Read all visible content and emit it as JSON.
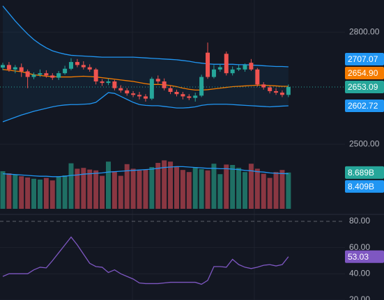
{
  "chart_data": [
    {
      "type": "candlestick",
      "open": [
        2705,
        2712,
        2700,
        2706,
        2695,
        2680,
        2686,
        2690,
        2684,
        2678,
        2690,
        2702,
        2720,
        2712,
        2706,
        2700,
        2668,
        2664,
        2668,
        2650,
        2644,
        2636,
        2632,
        2628,
        2622,
        2675,
        2668,
        2650,
        2640,
        2634,
        2628,
        2624,
        2630,
        2745,
        2680,
        2700,
        2742,
        2690,
        2700,
        2700,
        2718,
        2700,
        2660,
        2652,
        2642,
        2638,
        2632
      ],
      "high": [
        2718,
        2720,
        2712,
        2716,
        2700,
        2692,
        2700,
        2698,
        2690,
        2696,
        2710,
        2730,
        2728,
        2722,
        2714,
        2704,
        2674,
        2676,
        2672,
        2658,
        2650,
        2642,
        2640,
        2634,
        2680,
        2684,
        2676,
        2656,
        2646,
        2640,
        2634,
        2638,
        2686,
        2772,
        2712,
        2714,
        2748,
        2708,
        2712,
        2716,
        2728,
        2704,
        2666,
        2656,
        2650,
        2644,
        2660
      ],
      "low": [
        2698,
        2694,
        2690,
        2680,
        2650,
        2674,
        2680,
        2678,
        2672,
        2672,
        2686,
        2698,
        2706,
        2700,
        2694,
        2660,
        2656,
        2658,
        2644,
        2638,
        2630,
        2626,
        2620,
        2614,
        2618,
        2662,
        2644,
        2634,
        2628,
        2620,
        2618,
        2614,
        2626,
        2675,
        2676,
        2694,
        2684,
        2684,
        2696,
        2694,
        2696,
        2654,
        2646,
        2636,
        2632,
        2626,
        2626
      ],
      "close": [
        2712,
        2700,
        2706,
        2695,
        2680,
        2686,
        2690,
        2684,
        2678,
        2690,
        2702,
        2720,
        2712,
        2706,
        2700,
        2668,
        2664,
        2668,
        2650,
        2644,
        2636,
        2632,
        2628,
        2622,
        2675,
        2668,
        2650,
        2640,
        2634,
        2628,
        2624,
        2630,
        2680,
        2680,
        2700,
        2706,
        2690,
        2700,
        2704,
        2712,
        2700,
        2660,
        2652,
        2642,
        2638,
        2632,
        2653.09
      ],
      "up_color": "#26a69a",
      "down_color": "#ef5350",
      "overlays": [
        {
          "color": "#2196f3",
          "values": [
            2870,
            2850,
            2830,
            2812,
            2795,
            2780,
            2768,
            2758,
            2750,
            2745,
            2741,
            2738,
            2737,
            2736,
            2735,
            2734,
            2733,
            2733,
            2733,
            2733,
            2733,
            2733,
            2732,
            2731,
            2730,
            2729,
            2728,
            2727,
            2726,
            2724,
            2722,
            2719,
            2717,
            2715,
            2714,
            2714,
            2714,
            2714,
            2713,
            2713,
            2712,
            2711,
            2710,
            2709,
            2708,
            2708,
            2707.07
          ]
        },
        {
          "color": "#f57c00",
          "values": [
            2700,
            2698,
            2696,
            2694,
            2690,
            2686,
            2684,
            2682,
            2681,
            2680,
            2680,
            2680,
            2681,
            2682,
            2681,
            2680,
            2678,
            2676,
            2674,
            2672,
            2670,
            2668,
            2665,
            2662,
            2660,
            2660,
            2659,
            2657,
            2654,
            2650,
            2647,
            2645,
            2645,
            2646,
            2648,
            2650,
            2652,
            2654,
            2655,
            2656,
            2657,
            2658,
            2658,
            2657,
            2656,
            2655,
            2654.9
          ]
        },
        {
          "color": "#2196f3",
          "values": [
            2560,
            2566,
            2572,
            2578,
            2583,
            2588,
            2592,
            2596,
            2600,
            2603,
            2605,
            2606,
            2606,
            2607,
            2608,
            2612,
            2625,
            2638,
            2636,
            2628,
            2620,
            2612,
            2606,
            2604,
            2603,
            2603,
            2601,
            2599,
            2597,
            2597,
            2598,
            2600,
            2604,
            2606,
            2607,
            2607,
            2607,
            2606,
            2605,
            2604,
            2603,
            2602,
            2601,
            2600,
            2601,
            2602,
            2602.72
          ]
        }
      ],
      "band_fill": "rgba(33,150,243,0.07)",
      "ylim": [
        2327,
        2886
      ],
      "yticks": [
        {
          "value": 2800,
          "label": "2800.00"
        },
        {
          "value": 2500,
          "label": "2500.00"
        }
      ],
      "price_labels": [
        {
          "value": 2653.09,
          "label": "2653.09",
          "color": "#26a69a"
        },
        {
          "value": 2654.9,
          "label": "2654.90",
          "color": "#f57c00"
        },
        {
          "value": 2707.07,
          "label": "2707.07",
          "color": "#2196f3"
        },
        {
          "value": 2602.72,
          "label": "2602.72",
          "color": "#2196f3"
        }
      ]
    },
    {
      "type": "bar",
      "values": [
        9.0,
        8.5,
        8.2,
        7.8,
        7.5,
        7.2,
        7.0,
        7.4,
        6.8,
        7.6,
        8.0,
        10.9,
        9.6,
        9.8,
        9.4,
        9.2,
        7.9,
        11.3,
        9.0,
        7.9,
        10.7,
        9.6,
        9.2,
        9.4,
        10.0,
        11.0,
        11.6,
        11.3,
        10.2,
        9.3,
        8.8,
        10.0,
        9.5,
        9.2,
        10.8,
        8.3,
        10.6,
        10.5,
        9.8,
        8.8,
        10.8,
        9.6,
        8.4,
        7.4,
        8.8,
        9.3,
        8.689
      ],
      "up_color": "#1f6f64",
      "down_color": "#8a3742",
      "ma": {
        "color": "#2196f3",
        "values": [
          8.4,
          8.3,
          8.2,
          8.1,
          8.0,
          7.9,
          7.8,
          7.8,
          7.7,
          7.7,
          7.8,
          8.0,
          8.1,
          8.3,
          8.4,
          8.5,
          8.6,
          8.8,
          8.9,
          9.0,
          9.1,
          9.2,
          9.3,
          9.4,
          9.5,
          9.7,
          9.9,
          10.0,
          10.1,
          10.1,
          10.0,
          9.9,
          9.8,
          9.7,
          9.7,
          9.6,
          9.6,
          9.5,
          9.4,
          9.2,
          9.1,
          8.9,
          8.8,
          8.6,
          8.5,
          8.45,
          8.409
        ]
      },
      "ylim": [
        0,
        12
      ],
      "price_labels": [
        {
          "value": 8.689,
          "label": "8.689B",
          "color": "#26a69a"
        },
        {
          "value": 8.409,
          "label": "8.409B",
          "color": "#2196f3"
        }
      ]
    },
    {
      "type": "line",
      "values": [
        38,
        40,
        40,
        40,
        40,
        43,
        45,
        44.5,
        50,
        56,
        62,
        68,
        62,
        55,
        48,
        45.5,
        45,
        41,
        43,
        40,
        38,
        36,
        33,
        32.5,
        32.5,
        32.5,
        33,
        33.5,
        33.5,
        33.5,
        33.5,
        33.5,
        32,
        35,
        45.5,
        45.5,
        45,
        51,
        47,
        45,
        44,
        45,
        46.5,
        47,
        46,
        47,
        53.03
      ],
      "color": "#7e57c2",
      "ylim": [
        20,
        80
      ],
      "yticks": [
        {
          "value": 80,
          "label": "80.00"
        },
        {
          "value": 60,
          "label": "60.00"
        },
        {
          "value": 40,
          "label": "40.00"
        },
        {
          "value": 20,
          "label": "20.00"
        }
      ],
      "price_labels": [
        {
          "value": 53.03,
          "label": "53.03",
          "color": "#7e57c2"
        }
      ]
    }
  ]
}
